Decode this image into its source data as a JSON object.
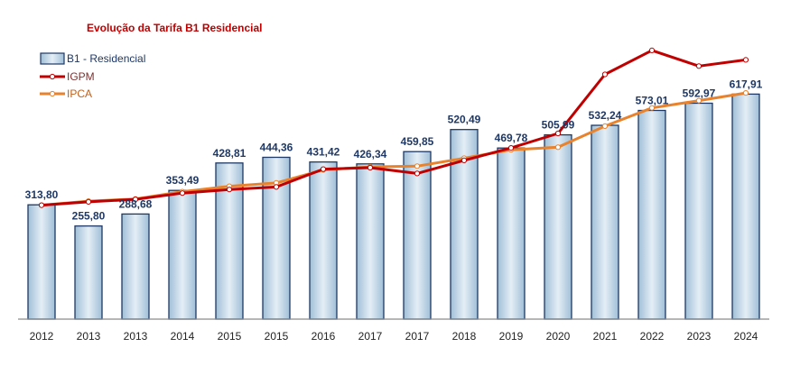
{
  "chart_data": {
    "type": "bar",
    "title": "Evolução da Tarifa B1 Residencial",
    "categories": [
      "2012",
      "2013",
      "2013",
      "2014",
      "2015",
      "2015",
      "2016",
      "2017",
      "2017",
      "2018",
      "2019",
      "2020",
      "2021",
      "2022",
      "2023",
      "2024"
    ],
    "series": [
      {
        "name": "B1 - Residencial",
        "type": "bar",
        "values": [
          313.8,
          255.8,
          288.68,
          353.49,
          428.81,
          444.36,
          431.42,
          426.34,
          459.85,
          520.49,
          469.78,
          505.99,
          532.24,
          573.01,
          592.97,
          617.91
        ],
        "labels": [
          "313,80",
          "255,80",
          "288,68",
          "353,49",
          "428,81",
          "444,36",
          "431,42",
          "426,34",
          "459,85",
          "520,49",
          "469,78",
          "505,99",
          "532,24",
          "573,01",
          "592,97",
          "617,91"
        ]
      },
      {
        "name": "IGPM",
        "type": "line",
        "values": [
          313,
          322,
          329,
          346,
          356,
          363,
          412,
          416,
          400,
          436,
          470,
          510,
          672,
          738,
          695,
          712
        ]
      },
      {
        "name": "IPCA",
        "type": "line",
        "values": [
          313,
          324,
          330,
          350,
          365,
          374,
          410,
          418,
          420,
          442,
          465,
          472,
          530,
          580,
          600,
          621
        ]
      }
    ],
    "ylim": [
      0,
      760
    ],
    "legend": "top-left",
    "grid": false,
    "colors": {
      "bar_fill_light": "#ddeaf4",
      "bar_fill_dark": "#9fbfd6",
      "bar_stroke": "#1f3864",
      "igpm": "#c00000",
      "ipca": "#e8822c",
      "label": "#1f3864",
      "title": "#c00000"
    }
  }
}
